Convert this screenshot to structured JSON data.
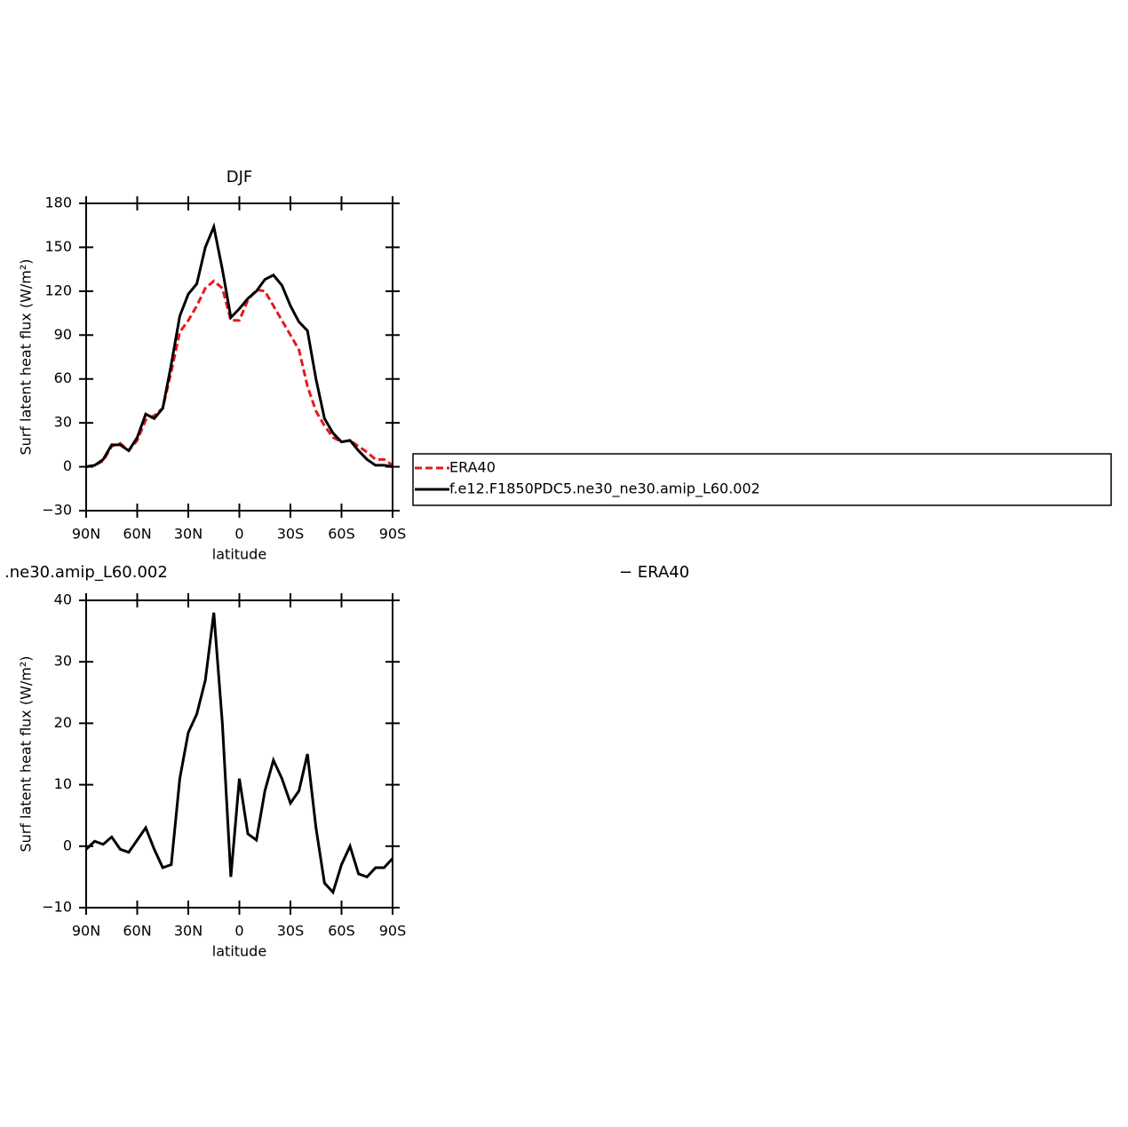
{
  "chart_data": [
    {
      "type": "line",
      "title": "DJF",
      "xlabel": "latitude",
      "ylabel": "Surf latent heat flux (W/m²)",
      "x": [
        90,
        85,
        80,
        75,
        70,
        65,
        60,
        55,
        50,
        45,
        40,
        35,
        30,
        25,
        20,
        15,
        10,
        5,
        0,
        -5,
        -10,
        -15,
        -20,
        -25,
        -30,
        -35,
        -40,
        -45,
        -50,
        -55,
        -60,
        -65,
        -70,
        -75,
        -80,
        -85,
        -90
      ],
      "xlim": [
        90,
        -90
      ],
      "xticks": [
        {
          "value": 90,
          "label": "90N"
        },
        {
          "value": 60,
          "label": "60N"
        },
        {
          "value": 30,
          "label": "30N"
        },
        0,
        {
          "value": -30,
          "label": "30S"
        },
        {
          "value": -60,
          "label": "60S"
        },
        {
          "value": -90,
          "label": "90S"
        }
      ],
      "ylim": [
        -30,
        180
      ],
      "yticks": [
        {
          "value": -30,
          "label": "−30"
        },
        0,
        30,
        60,
        90,
        120,
        150,
        180
      ],
      "legend": "right",
      "series": [
        {
          "name": "ERA40",
          "color": "#e41a1c",
          "dashed": true,
          "values": [
            0,
            1,
            4,
            14,
            16,
            11,
            18,
            32,
            35,
            40,
            65,
            92,
            100,
            110,
            122,
            127,
            122,
            100,
            100,
            114,
            121,
            120,
            110,
            100,
            90,
            80,
            55,
            38,
            28,
            20,
            17,
            18,
            14,
            10,
            5,
            5,
            1
          ]
        },
        {
          "name": "f.e12.F1850PDC5.ne30_ne30.amip_L60.002",
          "color": "#000000",
          "dashed": false,
          "values": [
            0,
            1,
            5,
            15,
            15,
            11,
            20,
            36,
            33,
            40,
            70,
            103,
            118,
            125,
            150,
            164,
            135,
            102,
            108,
            115,
            120,
            128,
            131,
            124,
            110,
            99,
            93,
            60,
            33,
            23,
            17,
            18,
            11,
            5,
            1,
            1,
            0
          ]
        }
      ]
    },
    {
      "type": "line",
      "title_parts": [
        ".ne30.amip_L60.002",
        "− ERA40"
      ],
      "xlabel": "latitude",
      "ylabel": "Surf latent heat flux (W/m²)",
      "x": [
        90,
        85,
        80,
        75,
        70,
        65,
        60,
        55,
        50,
        45,
        40,
        35,
        30,
        25,
        20,
        15,
        10,
        5,
        0,
        -5,
        -10,
        -15,
        -20,
        -25,
        -30,
        -35,
        -40,
        -45,
        -50,
        -55,
        -60,
        -65,
        -70,
        -75,
        -80,
        -85,
        -90
      ],
      "xlim": [
        90,
        -90
      ],
      "xticks": [
        {
          "value": 90,
          "label": "90N"
        },
        {
          "value": 60,
          "label": "60N"
        },
        {
          "value": 30,
          "label": "30N"
        },
        0,
        {
          "value": -30,
          "label": "30S"
        },
        {
          "value": -60,
          "label": "60S"
        },
        {
          "value": -90,
          "label": "90S"
        }
      ],
      "ylim": [
        -10,
        40
      ],
      "yticks": [
        {
          "value": -10,
          "label": "−10"
        },
        0,
        10,
        20,
        30,
        40
      ],
      "series": [
        {
          "color": "#000000",
          "dashed": false,
          "values": [
            -0.5,
            0.8,
            0.3,
            1.5,
            -0.5,
            -1,
            1,
            3,
            -0.5,
            -3.5,
            -3,
            11,
            18.5,
            21.5,
            27,
            38,
            20,
            -5,
            11,
            2,
            1,
            9,
            14,
            11,
            7,
            9,
            15,
            3,
            -6,
            -7.5,
            -3,
            0,
            -4.5,
            -5,
            -3.5,
            -3.5,
            -2
          ]
        }
      ]
    }
  ]
}
